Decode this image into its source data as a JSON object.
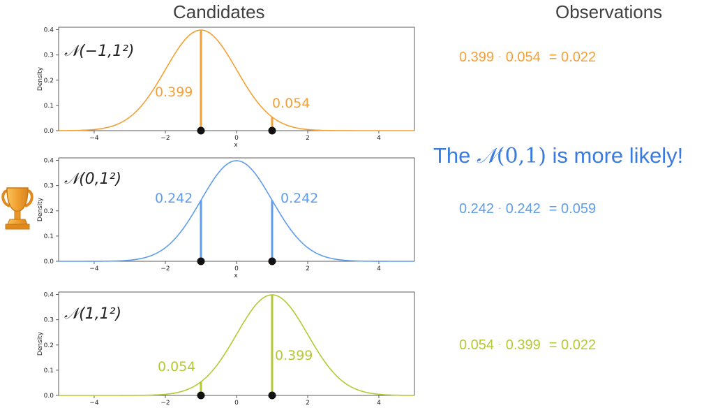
{
  "headers": {
    "candidates": "Candidates",
    "observations": "Observations"
  },
  "verdict": {
    "prefix": "The ",
    "math_symbol": "𝒩",
    "math_args": "(0,1)",
    "suffix": " is more likely!"
  },
  "colors": {
    "orange": "#f5a035",
    "blue": "#5e9cec",
    "green": "#b5c835",
    "verdict": "#3b7be0"
  },
  "icons": {
    "winner": "trophy-icon"
  },
  "observations": [
    {
      "a": "0.399",
      "dot": "·",
      "b": "0.054",
      "result": "= 0.022"
    },
    {
      "a": "0.242",
      "dot": "·",
      "b": "0.242",
      "result": "= 0.059"
    },
    {
      "a": "0.054",
      "dot": "·",
      "b": "0.399",
      "result": "= 0.022"
    }
  ],
  "chart_data": [
    {
      "type": "line",
      "label": "𝒩(−1,1²)",
      "mean": -1,
      "sd": 1,
      "color": "#f5a035",
      "xlabel": "x",
      "ylabel": "Density",
      "xlim": [
        -5,
        5
      ],
      "ylim": [
        0,
        0.41
      ],
      "xticks": [
        -4,
        -2,
        0,
        2,
        4
      ],
      "xtick_labels": [
        "−4",
        "−2",
        "0",
        "2",
        "4"
      ],
      "yticks": [
        0,
        0.1,
        0.2,
        0.3,
        0.4
      ],
      "ytick_labels": [
        "0.0",
        "0.1",
        "0.2",
        "0.3",
        "0.4"
      ],
      "observations_x": [
        -1,
        1
      ],
      "densities": [
        0.399,
        0.054
      ],
      "density_labels": [
        "0.399",
        "0.054"
      ],
      "show_xlabel": true
    },
    {
      "type": "line",
      "label": "𝒩(0,1²)",
      "mean": 0,
      "sd": 1,
      "color": "#5e9cec",
      "xlabel": "x",
      "ylabel": "Density",
      "xlim": [
        -5,
        5
      ],
      "ylim": [
        0,
        0.41
      ],
      "xticks": [
        -4,
        -2,
        0,
        2,
        4
      ],
      "xtick_labels": [
        "−4",
        "−2",
        "0",
        "2",
        "4"
      ],
      "yticks": [
        0,
        0.1,
        0.2,
        0.3,
        0.4
      ],
      "ytick_labels": [
        "0.0",
        "0.1",
        "0.2",
        "0.3",
        "0.4"
      ],
      "observations_x": [
        -1,
        1
      ],
      "densities": [
        0.242,
        0.242
      ],
      "density_labels": [
        "0.242",
        "0.242"
      ],
      "show_xlabel": true
    },
    {
      "type": "line",
      "label": "𝒩(1,1²)",
      "mean": 1,
      "sd": 1,
      "color": "#b5c835",
      "xlabel": "",
      "ylabel": "Density",
      "xlim": [
        -5,
        5
      ],
      "ylim": [
        0,
        0.41
      ],
      "xticks": [
        -4,
        -2,
        0,
        2,
        4
      ],
      "xtick_labels": [
        "−4",
        "−2",
        "0",
        "2",
        "4"
      ],
      "yticks": [
        0,
        0.1,
        0.2,
        0.3,
        0.4
      ],
      "ytick_labels": [
        "0.0",
        "0.1",
        "0.2",
        "0.3",
        "0.4"
      ],
      "observations_x": [
        -1,
        1
      ],
      "densities": [
        0.054,
        0.399
      ],
      "density_labels": [
        "0.054",
        "0.399"
      ],
      "show_xlabel": false
    }
  ]
}
